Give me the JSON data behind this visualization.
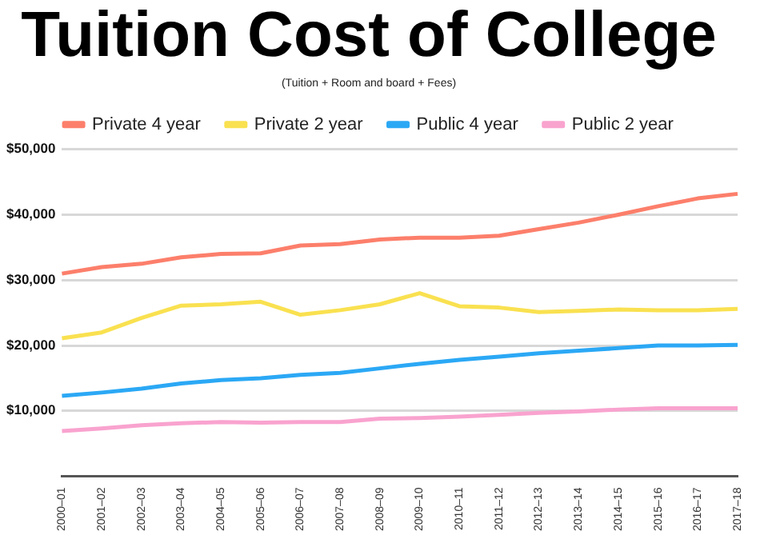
{
  "chart_data": {
    "type": "line",
    "title": "Tuition Cost of College",
    "subtitle": "(Tuition + Room and board + Fees)",
    "categories": [
      "2000–01",
      "2001–02",
      "2002–03",
      "2003–04",
      "2004–05",
      "2005–06",
      "2006–07",
      "2007–08",
      "2008–09",
      "2009–10",
      "2010–11",
      "2011–12",
      "2012–13",
      "2013–14",
      "2014–15",
      "2015–16",
      "2016–17",
      "2017–18"
    ],
    "series": [
      {
        "name": "Private 4 year",
        "color": "#fc7f6b",
        "values": [
          31000,
          32000,
          32500,
          33500,
          34000,
          34100,
          35300,
          35500,
          36200,
          36500,
          36500,
          36800,
          37800,
          38800,
          40000,
          41300,
          42500,
          43200
        ]
      },
      {
        "name": "Private 2 year",
        "color": "#f9e150",
        "values": [
          21100,
          22000,
          24200,
          26100,
          26300,
          26700,
          24700,
          25400,
          26300,
          28000,
          26000,
          25800,
          25100,
          25300,
          25500,
          25400,
          25400,
          25600
        ]
      },
      {
        "name": "Public 4 year",
        "color": "#2ba8f5",
        "values": [
          12300,
          12800,
          13400,
          14200,
          14700,
          15000,
          15500,
          15800,
          16500,
          17200,
          17800,
          18300,
          18800,
          19200,
          19600,
          20000,
          20000,
          20100
        ]
      },
      {
        "name": "Public 2 year",
        "color": "#f9a3cf",
        "values": [
          6900,
          7300,
          7800,
          8100,
          8300,
          8200,
          8300,
          8300,
          8800,
          8900,
          9100,
          9400,
          9700,
          9900,
          10200,
          10400,
          10400,
          10400
        ]
      }
    ],
    "ylim": [
      0,
      50000
    ],
    "yticks": [
      {
        "value": 10000,
        "label": "$10,000"
      },
      {
        "value": 20000,
        "label": "$20,000"
      },
      {
        "value": 30000,
        "label": "$30,000"
      },
      {
        "value": 40000,
        "label": "$40,000"
      },
      {
        "value": 50000,
        "label": "$50,000"
      }
    ],
    "grid": "y",
    "legend": "top",
    "marker": "none",
    "line_style": "solid"
  }
}
